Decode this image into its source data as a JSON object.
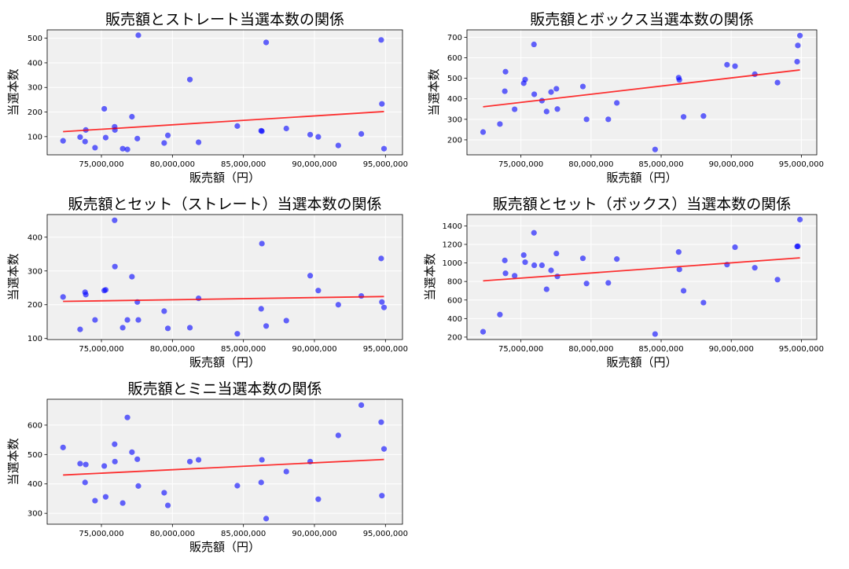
{
  "chart_data": [
    {
      "type": "scatter",
      "title": "販売額とストレート当選本数の関係",
      "xlabel": "販売額（円）",
      "ylabel": "当選本数",
      "xlim": [
        71180000,
        96200000
      ],
      "ylim": [
        26,
        534
      ],
      "xticks": [
        75000000,
        80000000,
        85000000,
        90000000,
        95000000
      ],
      "yticks": [
        100,
        200,
        300,
        400,
        500
      ],
      "grid": true,
      "trendline": true,
      "x": [
        72300000,
        73500000,
        73850000,
        73900000,
        74550000,
        75200000,
        75300000,
        75930000,
        75950000,
        76500000,
        76830000,
        77150000,
        77530000,
        77600000,
        79420000,
        79680000,
        81230000,
        81840000,
        84570000,
        86250000,
        86300000,
        86600000,
        88020000,
        89700000,
        90270000,
        91680000,
        93300000,
        94700000,
        94750000,
        94900000
      ],
      "y": [
        83,
        98,
        80,
        127,
        55,
        213,
        96,
        140,
        127,
        51,
        48,
        181,
        92,
        512,
        74,
        105,
        332,
        77,
        143,
        124,
        122,
        483,
        133,
        108,
        99,
        64,
        111,
        493,
        233,
        51
      ]
    },
    {
      "type": "scatter",
      "title": "販売額とボックス当選本数の関係",
      "xlabel": "販売額（円）",
      "ylabel": "当選本数",
      "xlim": [
        71150000,
        96100000
      ],
      "ylim": [
        127,
        736
      ],
      "xticks": [
        75000000,
        80000000,
        85000000,
        90000000,
        95000000
      ],
      "yticks": [
        200,
        300,
        400,
        500,
        600,
        700
      ],
      "grid": true,
      "trendline": true,
      "x": [
        72300000,
        73500000,
        73850000,
        73900000,
        74550000,
        75200000,
        75300000,
        75930000,
        75950000,
        76500000,
        76830000,
        77150000,
        77530000,
        77600000,
        79420000,
        79680000,
        81230000,
        81840000,
        84570000,
        86250000,
        86300000,
        86600000,
        88020000,
        89700000,
        90270000,
        91680000,
        93300000,
        94700000,
        94750000,
        94900000
      ],
      "y": [
        238,
        277,
        437,
        532,
        349,
        476,
        494,
        665,
        422,
        391,
        338,
        433,
        449,
        350,
        460,
        300,
        300,
        380,
        153,
        503,
        492,
        312,
        316,
        566,
        559,
        520,
        479,
        581,
        660,
        708
      ]
    },
    {
      "type": "scatter",
      "title": "販売額とセット（ストレート）当選本数の関係",
      "xlabel": "販売額（円）",
      "ylabel": "当選本数",
      "xlim": [
        71180000,
        96200000
      ],
      "ylim": [
        97,
        467
      ],
      "xticks": [
        75000000,
        80000000,
        85000000,
        90000000,
        95000000
      ],
      "yticks": [
        100,
        200,
        300,
        400
      ],
      "grid": true,
      "trendline": true,
      "x": [
        72300000,
        73500000,
        73850000,
        73900000,
        74550000,
        75200000,
        75300000,
        75930000,
        75950000,
        76500000,
        76830000,
        77150000,
        77530000,
        77600000,
        79420000,
        79680000,
        81230000,
        81840000,
        84570000,
        86250000,
        86300000,
        86600000,
        88020000,
        89700000,
        90270000,
        91680000,
        93300000,
        94700000,
        94750000,
        94900000
      ],
      "y": [
        223,
        127,
        237,
        230,
        155,
        242,
        244,
        450,
        313,
        132,
        155,
        283,
        208,
        155,
        181,
        130,
        132,
        219,
        114,
        188,
        381,
        137,
        153,
        286,
        242,
        200,
        226,
        337,
        208,
        192
      ]
    },
    {
      "type": "scatter",
      "title": "販売額とセット（ボックス）当選本数の関係",
      "xlabel": "販売額（円）",
      "ylabel": "当選本数",
      "xlim": [
        71150000,
        96100000
      ],
      "ylim": [
        174,
        1522
      ],
      "xticks": [
        75000000,
        80000000,
        85000000,
        90000000,
        95000000
      ],
      "yticks": [
        200,
        400,
        600,
        800,
        1000,
        1200,
        1400
      ],
      "grid": true,
      "trendline": true,
      "x": [
        72300000,
        73500000,
        73850000,
        73900000,
        74550000,
        75200000,
        75300000,
        75930000,
        75950000,
        76500000,
        76830000,
        77150000,
        77530000,
        77600000,
        79420000,
        79680000,
        81230000,
        81840000,
        84570000,
        86250000,
        86300000,
        86600000,
        88020000,
        89700000,
        90270000,
        91680000,
        93300000,
        94700000,
        94750000,
        94900000
      ],
      "y": [
        258,
        443,
        1027,
        888,
        862,
        1085,
        1008,
        1325,
        975,
        975,
        716,
        920,
        1102,
        855,
        1050,
        778,
        785,
        1042,
        233,
        1118,
        930,
        700,
        572,
        982,
        1170,
        948,
        820,
        1178,
        1180,
        1468
      ]
    },
    {
      "type": "scatter",
      "title": "販売額とミニ当選本数の関係",
      "xlabel": "販売額（円）",
      "ylabel": "当選本数",
      "xlim": [
        71180000,
        96200000
      ],
      "ylim": [
        263,
        688
      ],
      "xticks": [
        75000000,
        80000000,
        85000000,
        90000000,
        95000000
      ],
      "yticks": [
        300,
        400,
        500,
        600
      ],
      "grid": true,
      "trendline": true,
      "x": [
        72300000,
        73500000,
        73850000,
        73900000,
        74550000,
        75200000,
        75300000,
        75930000,
        75950000,
        76500000,
        76830000,
        77150000,
        77530000,
        77600000,
        79420000,
        79680000,
        81230000,
        81840000,
        84570000,
        86250000,
        86300000,
        86600000,
        88020000,
        89700000,
        90270000,
        91680000,
        93300000,
        94700000,
        94750000,
        94900000
      ],
      "y": [
        524,
        469,
        405,
        466,
        343,
        461,
        356,
        535,
        476,
        335,
        626,
        508,
        484,
        393,
        370,
        327,
        476,
        482,
        394,
        405,
        482,
        282,
        442,
        476,
        348,
        565,
        668,
        610,
        360,
        519
      ]
    }
  ],
  "colors": {
    "points": "#0000ff",
    "trendline": "#ff0000",
    "plot_background": "#f0f0f0",
    "grid": "#ffffff"
  }
}
